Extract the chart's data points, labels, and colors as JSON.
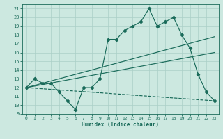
{
  "bg_color": "#cce8e0",
  "grid_color": "#aacfc7",
  "line_color": "#1a6b5a",
  "xlabel": "Humidex (Indice chaleur)",
  "xlim": [
    -0.5,
    23.5
  ],
  "ylim": [
    9,
    21.5
  ],
  "yticks": [
    9,
    10,
    11,
    12,
    13,
    14,
    15,
    16,
    17,
    18,
    19,
    20,
    21
  ],
  "xticks": [
    0,
    1,
    2,
    3,
    4,
    5,
    6,
    7,
    8,
    9,
    10,
    11,
    12,
    13,
    14,
    15,
    16,
    17,
    18,
    19,
    20,
    21,
    22,
    23
  ],
  "line1_x": [
    0,
    1,
    2,
    3,
    4,
    5,
    6,
    7,
    8,
    9,
    10,
    11,
    12,
    13,
    14,
    15,
    16,
    17,
    18,
    19,
    20,
    21,
    22,
    23
  ],
  "line1_y": [
    12,
    13,
    12.5,
    12.5,
    11.5,
    10.5,
    9.5,
    12.0,
    12.0,
    13.0,
    17.5,
    17.5,
    18.5,
    19.0,
    19.5,
    21.0,
    19.0,
    19.5,
    20.0,
    18.0,
    16.5,
    13.5,
    11.5,
    10.5
  ],
  "line2_x": [
    0,
    23
  ],
  "line2_y": [
    12,
    17.8
  ],
  "line3_x": [
    0,
    23
  ],
  "line3_y": [
    12,
    16.0
  ],
  "line4_x": [
    0,
    23
  ],
  "line4_y": [
    12,
    10.5
  ],
  "marker": "D",
  "markersize": 2.2,
  "linewidth": 0.85
}
